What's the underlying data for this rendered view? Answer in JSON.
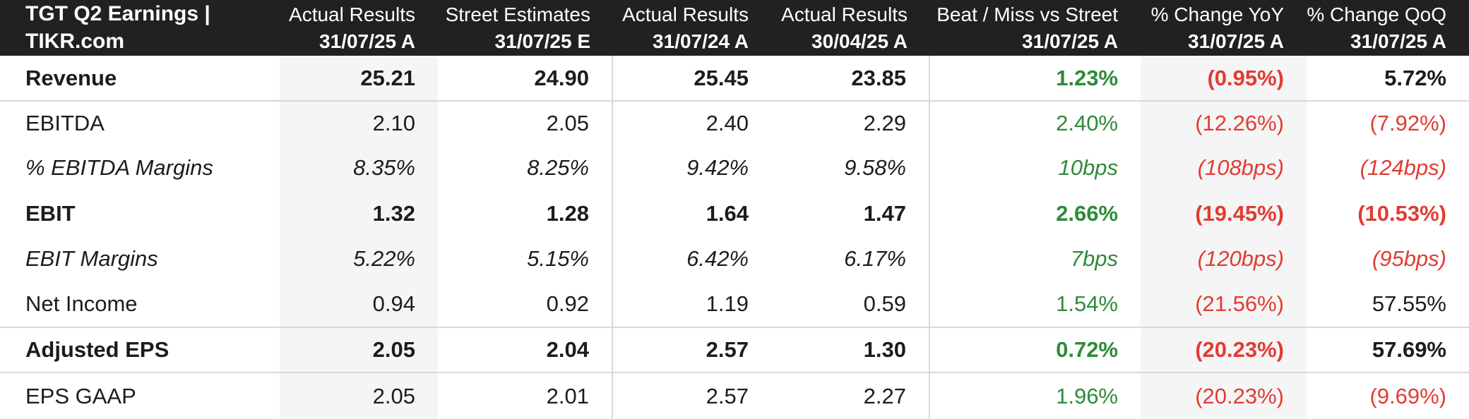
{
  "chart_data": {
    "type": "table",
    "title": "TGT Q2 Earnings | TIKR.com",
    "columns": [
      {
        "metric": "Actual Results",
        "period": "31/07/25 A"
      },
      {
        "metric": "Street Estimates",
        "period": "31/07/25 E"
      },
      {
        "metric": "Actual Results",
        "period": "31/07/24 A"
      },
      {
        "metric": "Actual Results",
        "period": "30/04/25 A"
      },
      {
        "metric": "Beat / Miss vs Street",
        "period": "31/07/25 A"
      },
      {
        "metric": "% Change YoY",
        "period": "31/07/25 A"
      },
      {
        "metric": "% Change QoQ",
        "period": "31/07/25 A"
      }
    ],
    "rows": [
      {
        "label": "Revenue",
        "emphasis": "bold",
        "divider_above": false,
        "values": [
          "25.21",
          "24.90",
          "25.45",
          "23.85",
          "1.23%",
          "(0.95%)",
          "5.72%"
        ],
        "value_colors": [
          "default",
          "default",
          "default",
          "default",
          "green",
          "red",
          "default"
        ]
      },
      {
        "label": "EBITDA",
        "emphasis": "normal",
        "divider_above": true,
        "values": [
          "2.10",
          "2.05",
          "2.40",
          "2.29",
          "2.40%",
          "(12.26%)",
          "(7.92%)"
        ],
        "value_colors": [
          "default",
          "default",
          "default",
          "default",
          "green",
          "red",
          "red"
        ]
      },
      {
        "label": "% EBITDA Margins",
        "emphasis": "italic",
        "divider_above": false,
        "values": [
          "8.35%",
          "8.25%",
          "9.42%",
          "9.58%",
          "10bps",
          "(108bps)",
          "(124bps)"
        ],
        "value_colors": [
          "default",
          "default",
          "default",
          "default",
          "green",
          "red",
          "red"
        ]
      },
      {
        "label": "EBIT",
        "emphasis": "bold",
        "divider_above": false,
        "values": [
          "1.32",
          "1.28",
          "1.64",
          "1.47",
          "2.66%",
          "(19.45%)",
          "(10.53%)"
        ],
        "value_colors": [
          "default",
          "default",
          "default",
          "default",
          "green",
          "red",
          "red"
        ]
      },
      {
        "label": "EBIT Margins",
        "emphasis": "italic",
        "divider_above": false,
        "values": [
          "5.22%",
          "5.15%",
          "6.42%",
          "6.17%",
          "7bps",
          "(120bps)",
          "(95bps)"
        ],
        "value_colors": [
          "default",
          "default",
          "default",
          "default",
          "green",
          "red",
          "red"
        ]
      },
      {
        "label": "Net Income",
        "emphasis": "normal",
        "divider_above": false,
        "values": [
          "0.94",
          "0.92",
          "1.19",
          "0.59",
          "1.54%",
          "(21.56%)",
          "57.55%"
        ],
        "value_colors": [
          "default",
          "default",
          "default",
          "default",
          "green",
          "red",
          "default"
        ]
      },
      {
        "label": "Adjusted EPS",
        "emphasis": "bold",
        "divider_above": true,
        "values": [
          "2.05",
          "2.04",
          "2.57",
          "1.30",
          "0.72%",
          "(20.23%)",
          "57.69%"
        ],
        "value_colors": [
          "default",
          "default",
          "default",
          "default",
          "green",
          "red",
          "default"
        ]
      },
      {
        "label": "EPS GAAP",
        "emphasis": "normal",
        "divider_above": true,
        "values": [
          "2.05",
          "2.01",
          "2.57",
          "2.27",
          "1.96%",
          "(20.23%)",
          "(9.69%)"
        ],
        "value_colors": [
          "default",
          "default",
          "default",
          "default",
          "green",
          "red",
          "red"
        ]
      }
    ]
  },
  "colors": {
    "positive_green": "#2f8a3a",
    "negative_red": "#e03c33",
    "header_background": "#212121",
    "header_text": "#ffffff",
    "body_text": "#1c1c1c",
    "striped_column_background": "#f5f5f5",
    "divider": "#d9d9d9"
  }
}
